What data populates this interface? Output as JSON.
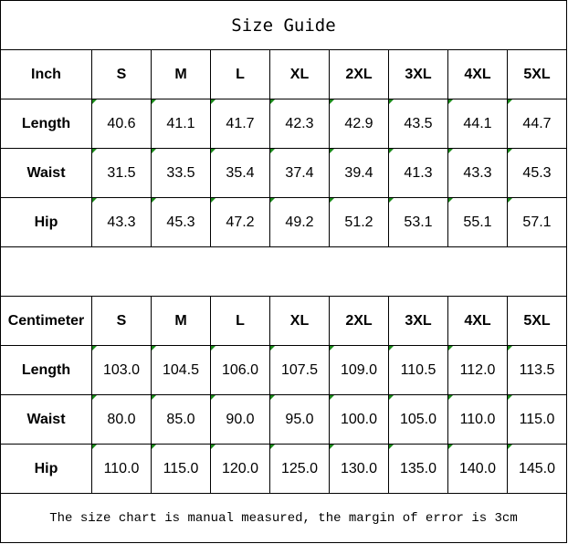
{
  "title": "Size Guide",
  "inch": {
    "unit": "Inch",
    "sizes": [
      "S",
      "M",
      "L",
      "XL",
      "2XL",
      "3XL",
      "4XL",
      "5XL"
    ],
    "rows": [
      {
        "label": "Length",
        "values": [
          "40.6",
          "41.1",
          "41.7",
          "42.3",
          "42.9",
          "43.5",
          "44.1",
          "44.7"
        ]
      },
      {
        "label": "Waist",
        "values": [
          "31.5",
          "33.5",
          "35.4",
          "37.4",
          "39.4",
          "41.3",
          "43.3",
          "45.3"
        ]
      },
      {
        "label": "Hip",
        "values": [
          "43.3",
          "45.3",
          "47.2",
          "49.2",
          "51.2",
          "53.1",
          "55.1",
          "57.1"
        ]
      }
    ]
  },
  "cm": {
    "unit": "Centimeter",
    "sizes": [
      "S",
      "M",
      "L",
      "XL",
      "2XL",
      "3XL",
      "4XL",
      "5XL"
    ],
    "rows": [
      {
        "label": "Length",
        "values": [
          "103.0",
          "104.5",
          "106.0",
          "107.5",
          "109.0",
          "110.5",
          "112.0",
          "113.5"
        ]
      },
      {
        "label": "Waist",
        "values": [
          "80.0",
          "85.0",
          "90.0",
          "95.0",
          "100.0",
          "105.0",
          "110.0",
          "115.0"
        ]
      },
      {
        "label": "Hip",
        "values": [
          "110.0",
          "115.0",
          "120.0",
          "125.0",
          "130.0",
          "135.0",
          "140.0",
          "145.0"
        ]
      }
    ]
  },
  "note": "The size chart is manual measured, the margin of error is 3cm",
  "colors": {
    "cell_marker": "#1a8a1a"
  }
}
